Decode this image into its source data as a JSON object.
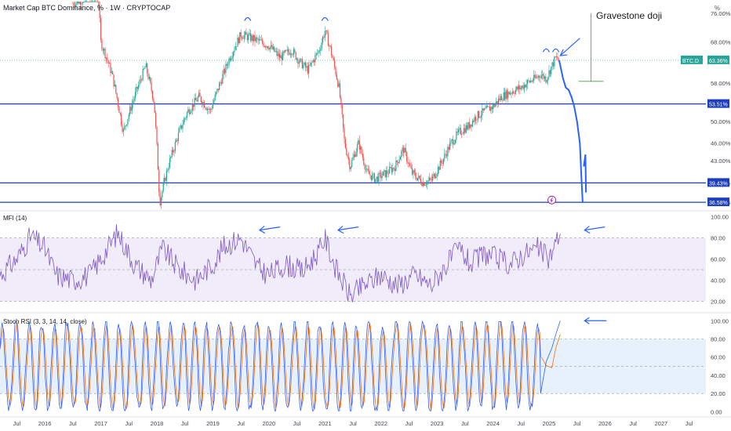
{
  "header": {
    "title": "Market Cap BTC Dominance, % · 1W · CRYPTOCAP",
    "unit": "%"
  },
  "annotations": {
    "gravestone": "Gravestone doji"
  },
  "colors": {
    "bull": "#26a69a",
    "bear": "#ef5350",
    "level": "#1c3fbf",
    "projection": "#2962ff",
    "mfi": "#7e57c2",
    "stoch_k": "#2962ff",
    "stoch_d": "#ff6d00",
    "mfi_band": "#f1ecf9",
    "stoch_band": "#e6f1fb",
    "tag_teal": "#26a69a",
    "doji_marker": "#43a047"
  },
  "chart_data": [
    {
      "type": "candlestick",
      "panel": "price",
      "ylim": [
        35.5,
        80
      ],
      "log_scale": true,
      "y_ticks": [
        "76.00%",
        "68.00%",
        "58.00%",
        "50.00%",
        "46.00%",
        "43.00%",
        "39.43%",
        "36.58%"
      ],
      "x_ticks": [
        "Jul",
        "2016",
        "Jul",
        "2017",
        "Jul",
        "2018",
        "Jul",
        "2019",
        "Jul",
        "2020",
        "Jul",
        "2021",
        "Jul",
        "2022",
        "Jul",
        "2023",
        "Jul",
        "2024",
        "Jul",
        "2025",
        "Jul",
        "2026",
        "Jul",
        "2027",
        "Jul"
      ],
      "x_range": [
        2015.2,
        2027.8
      ],
      "anchors": [
        [
          2016.5,
          79
        ],
        [
          2016.95,
          82
        ],
        [
          2017.0,
          68
        ],
        [
          2017.2,
          60
        ],
        [
          2017.4,
          48
        ],
        [
          2017.6,
          55
        ],
        [
          2017.8,
          62
        ],
        [
          2017.95,
          54
        ],
        [
          2018.05,
          36.5
        ],
        [
          2018.2,
          42
        ],
        [
          2018.4,
          48
        ],
        [
          2018.55,
          52
        ],
        [
          2018.75,
          55
        ],
        [
          2018.95,
          52
        ],
        [
          2019.1,
          57
        ],
        [
          2019.3,
          64
        ],
        [
          2019.5,
          70
        ],
        [
          2019.7,
          69
        ],
        [
          2019.85,
          68
        ],
        [
          2020.0,
          67
        ],
        [
          2020.2,
          64
        ],
        [
          2020.4,
          66
        ],
        [
          2020.55,
          63
        ],
        [
          2020.7,
          61
        ],
        [
          2020.9,
          66
        ],
        [
          2021.0,
          71
        ],
        [
          2021.1,
          66
        ],
        [
          2021.25,
          57
        ],
        [
          2021.35,
          46
        ],
        [
          2021.45,
          42
        ],
        [
          2021.6,
          46
        ],
        [
          2021.75,
          41
        ],
        [
          2021.9,
          40
        ],
        [
          2022.1,
          41
        ],
        [
          2022.25,
          42
        ],
        [
          2022.4,
          45
        ],
        [
          2022.55,
          41
        ],
        [
          2022.75,
          39.5
        ],
        [
          2022.9,
          39.8
        ],
        [
          2023.1,
          43
        ],
        [
          2023.25,
          46
        ],
        [
          2023.4,
          48
        ],
        [
          2023.55,
          49
        ],
        [
          2023.7,
          51
        ],
        [
          2023.85,
          52
        ],
        [
          2024.0,
          53
        ],
        [
          2024.15,
          55
        ],
        [
          2024.3,
          56
        ],
        [
          2024.5,
          57
        ],
        [
          2024.6,
          58
        ],
        [
          2024.75,
          59
        ],
        [
          2024.85,
          60
        ],
        [
          2024.95,
          59
        ],
        [
          2025.05,
          62
        ],
        [
          2025.12,
          64
        ],
        [
          2025.18,
          63.36
        ]
      ],
      "last_tag": "BTC.D",
      "last_value": "63.36%",
      "projection": [
        [
          2025.18,
          63.36
        ],
        [
          2025.25,
          59
        ],
        [
          2025.3,
          57
        ],
        [
          2025.35,
          56.5
        ],
        [
          2025.4,
          55
        ],
        [
          2025.45,
          53
        ],
        [
          2025.5,
          50
        ],
        [
          2025.55,
          46
        ],
        [
          2025.58,
          40
        ],
        [
          2025.6,
          36.5
        ]
      ],
      "projection_spike": [
        [
          2025.62,
          42
        ],
        [
          2025.65,
          44
        ],
        [
          2025.66,
          38
        ]
      ],
      "levels": [
        {
          "value": 53.51,
          "label": "53.51%"
        },
        {
          "value": 39.43,
          "label": "39.43%"
        },
        {
          "value": 36.58,
          "label": "36.58%"
        }
      ],
      "dotted_level": 63.36,
      "peak_marks": [
        [
          2019.62,
          74.5
        ],
        [
          2021.0,
          74.5
        ],
        [
          2024.95,
          66
        ],
        [
          2025.12,
          66
        ]
      ],
      "doji_marker": {
        "x": 2025.75,
        "top": 76,
        "bottom": 58.4
      },
      "pointer": {
        "from": [
          2025.55,
          69
        ],
        "to": [
          2025.2,
          64.5
        ]
      },
      "event_icon": {
        "x": 2025.05,
        "y": 36.9
      }
    },
    {
      "type": "line",
      "panel": "mfi",
      "label": "MFI (14)",
      "ylim": [
        10,
        105
      ],
      "y_ticks": [
        "100.00",
        "80.00",
        "60.00",
        "40.00",
        "20.00"
      ],
      "bands": [
        80,
        50,
        20
      ],
      "anchors": [
        [
          2015.2,
          45
        ],
        [
          2015.5,
          60
        ],
        [
          2015.75,
          82
        ],
        [
          2016.0,
          70
        ],
        [
          2016.2,
          45
        ],
        [
          2016.5,
          40
        ],
        [
          2016.8,
          45
        ],
        [
          2017.0,
          60
        ],
        [
          2017.3,
          85
        ],
        [
          2017.6,
          55
        ],
        [
          2017.9,
          40
        ],
        [
          2018.1,
          70
        ],
        [
          2018.4,
          50
        ],
        [
          2018.7,
          40
        ],
        [
          2019.0,
          55
        ],
        [
          2019.2,
          72
        ],
        [
          2019.5,
          80
        ],
        [
          2019.8,
          52
        ],
        [
          2020.0,
          45
        ],
        [
          2020.3,
          55
        ],
        [
          2020.6,
          48
        ],
        [
          2020.9,
          68
        ],
        [
          2021.0,
          80
        ],
        [
          2021.2,
          50
        ],
        [
          2021.45,
          25
        ],
        [
          2021.7,
          35
        ],
        [
          2022.0,
          45
        ],
        [
          2022.3,
          35
        ],
        [
          2022.6,
          45
        ],
        [
          2022.9,
          35
        ],
        [
          2023.1,
          50
        ],
        [
          2023.4,
          70
        ],
        [
          2023.6,
          55
        ],
        [
          2023.85,
          65
        ],
        [
          2024.1,
          60
        ],
        [
          2024.3,
          55
        ],
        [
          2024.55,
          65
        ],
        [
          2024.8,
          70
        ],
        [
          2025.0,
          60
        ],
        [
          2025.12,
          75
        ],
        [
          2025.2,
          87
        ]
      ],
      "pointers": [
        [
          2019.75,
          86
        ],
        [
          2021.15,
          86
        ],
        [
          2025.55,
          86
        ]
      ]
    },
    {
      "type": "line",
      "panel": "stoch",
      "label": "Stoch RSI (3, 3, 14, 14, close)",
      "ylim": [
        -4,
        108
      ],
      "y_ticks": [
        "100.00",
        "80.00",
        "60.00",
        "40.00",
        "20.00",
        "0.00"
      ],
      "bands": [
        80,
        50,
        20
      ],
      "series": [
        {
          "name": "K",
          "color": "#2962ff"
        },
        {
          "name": "D",
          "color": "#ff6d00"
        }
      ],
      "tail": [
        [
          2024.85,
          20
        ],
        [
          2024.95,
          55
        ],
        [
          2025.05,
          70
        ],
        [
          2025.12,
          85
        ],
        [
          2025.2,
          100
        ]
      ],
      "pointers": [
        [
          2025.55,
          100
        ]
      ]
    }
  ]
}
